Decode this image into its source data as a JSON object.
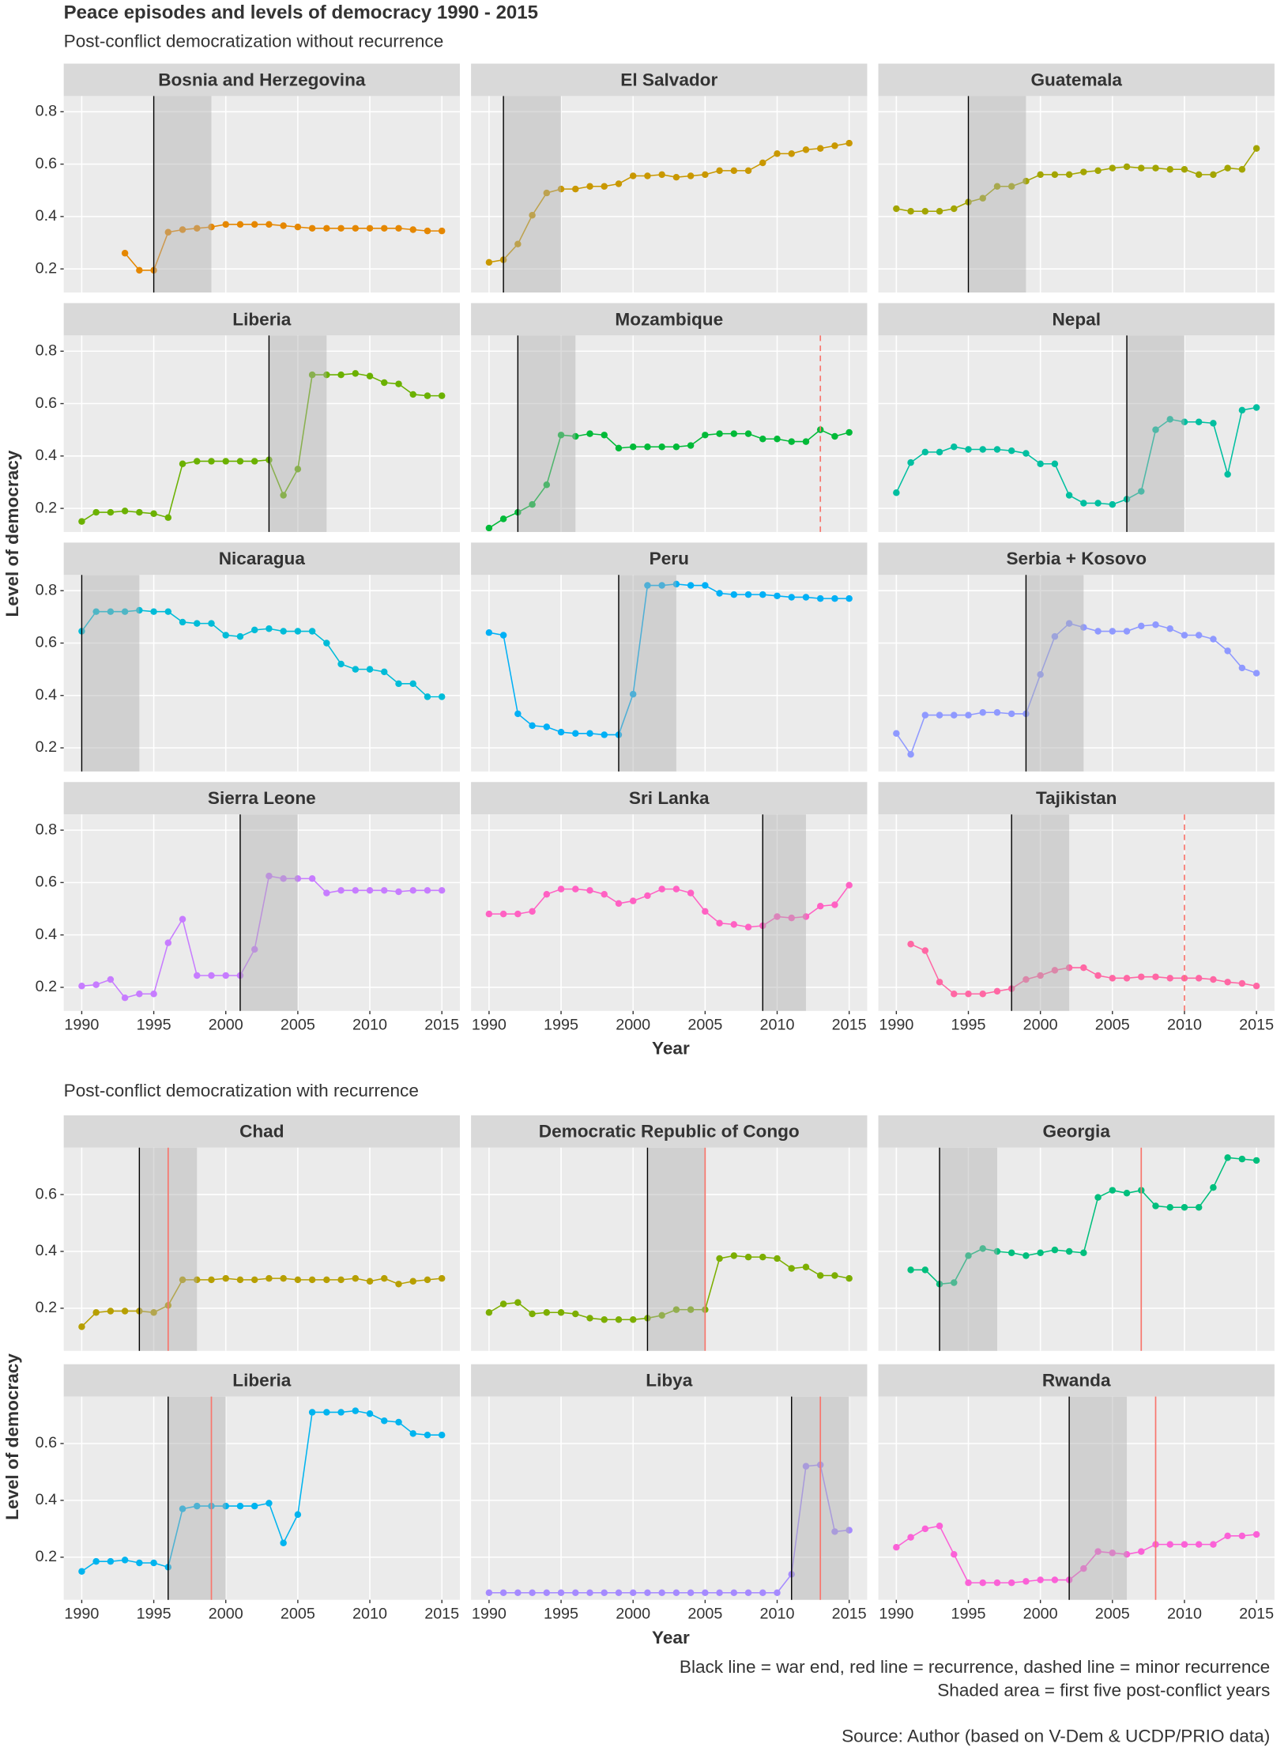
{
  "chart_data": {
    "title": "Peace episodes and levels of democracy 1990 - 2015",
    "sections": [
      {
        "subtitle": "Post-conflict democratization without recurrence",
        "y_label": "Level of democracy",
        "x_label": "Year",
        "x": [
          1990,
          1991,
          1992,
          1993,
          1994,
          1995,
          1996,
          1997,
          1998,
          1999,
          2000,
          2001,
          2002,
          2003,
          2004,
          2005,
          2006,
          2007,
          2008,
          2009,
          2010,
          2011,
          2012,
          2013,
          2014,
          2015
        ],
        "xlim": [
          1988.75,
          2016.25
        ],
        "xticks": [
          1990,
          1995,
          2000,
          2005,
          2010,
          2015
        ],
        "ylim": [
          0.11,
          0.86
        ],
        "yticks": [
          0.2,
          0.4,
          0.6,
          0.8
        ],
        "grid": true,
        "panels": [
          {
            "type": "line",
            "title": "Bosnia and Herzegovina",
            "color": "#E58700",
            "war_end": 1995,
            "shade": [
              1995,
              1999
            ],
            "values": [
              null,
              null,
              null,
              0.26,
              0.195,
              0.195,
              0.34,
              0.35,
              0.355,
              0.36,
              0.37,
              0.37,
              0.37,
              0.37,
              0.365,
              0.36,
              0.355,
              0.355,
              0.355,
              0.355,
              0.355,
              0.355,
              0.355,
              0.35,
              0.345,
              0.345
            ]
          },
          {
            "type": "line",
            "title": "El Salvador",
            "color": "#C99800",
            "war_end": 1991,
            "shade": [
              1991,
              1995
            ],
            "values": [
              0.225,
              0.235,
              0.295,
              0.405,
              0.49,
              0.505,
              0.505,
              0.515,
              0.515,
              0.525,
              0.555,
              0.555,
              0.56,
              0.55,
              0.555,
              0.56,
              0.575,
              0.575,
              0.575,
              0.605,
              0.64,
              0.64,
              0.655,
              0.66,
              0.67,
              0.68
            ]
          },
          {
            "type": "line",
            "title": "Guatemala",
            "color": "#A3A500",
            "war_end": 1995,
            "shade": [
              1995,
              1999
            ],
            "values": [
              0.43,
              0.42,
              0.42,
              0.42,
              0.43,
              0.455,
              0.47,
              0.515,
              0.515,
              0.535,
              0.56,
              0.56,
              0.56,
              0.57,
              0.575,
              0.585,
              0.59,
              0.585,
              0.585,
              0.58,
              0.58,
              0.56,
              0.56,
              0.585,
              0.58,
              0.66
            ]
          },
          {
            "type": "line",
            "title": "Liberia",
            "color": "#6BB100",
            "war_end": 2003,
            "shade": [
              2003,
              2007
            ],
            "values": [
              0.15,
              0.185,
              0.185,
              0.19,
              0.185,
              0.18,
              0.165,
              0.37,
              0.38,
              0.38,
              0.38,
              0.38,
              0.38,
              0.385,
              0.25,
              0.35,
              0.71,
              0.71,
              0.71,
              0.715,
              0.705,
              0.68,
              0.675,
              0.635,
              0.63,
              0.63
            ]
          },
          {
            "type": "line",
            "title": "Mozambique",
            "color": "#00BA38",
            "war_end": 1992,
            "shade": [
              1992,
              1996
            ],
            "minor_recurrence": 2013,
            "values": [
              0.125,
              0.16,
              0.185,
              0.215,
              0.29,
              0.48,
              0.475,
              0.485,
              0.48,
              0.43,
              0.435,
              0.435,
              0.435,
              0.435,
              0.44,
              0.48,
              0.485,
              0.485,
              0.485,
              0.465,
              0.465,
              0.455,
              0.455,
              0.5,
              0.475,
              0.49
            ]
          },
          {
            "type": "line",
            "title": "Nepal",
            "color": "#00BFA0",
            "war_end": 2006,
            "shade": [
              2006,
              2010
            ],
            "values": [
              0.26,
              0.375,
              0.415,
              0.415,
              0.435,
              0.425,
              0.425,
              0.425,
              0.42,
              0.41,
              0.37,
              0.37,
              0.25,
              0.22,
              0.22,
              0.215,
              0.235,
              0.265,
              0.5,
              0.54,
              0.53,
              0.53,
              0.525,
              0.33,
              0.575,
              0.585
            ]
          },
          {
            "type": "line",
            "title": "Nicaragua",
            "color": "#00BCD8",
            "war_end": 1990,
            "shade": [
              1990,
              1994
            ],
            "values": [
              0.645,
              0.72,
              0.72,
              0.72,
              0.725,
              0.72,
              0.72,
              0.68,
              0.675,
              0.675,
              0.63,
              0.625,
              0.65,
              0.655,
              0.645,
              0.645,
              0.645,
              0.6,
              0.52,
              0.5,
              0.5,
              0.49,
              0.445,
              0.445,
              0.395,
              0.395
            ]
          },
          {
            "type": "line",
            "title": "Peru",
            "color": "#00B0F6",
            "war_end": 1999,
            "shade": [
              1999,
              2003
            ],
            "values": [
              0.64,
              0.63,
              0.33,
              0.285,
              0.28,
              0.26,
              0.255,
              0.255,
              0.25,
              0.25,
              0.405,
              0.82,
              0.82,
              0.825,
              0.82,
              0.82,
              0.79,
              0.785,
              0.785,
              0.785,
              0.78,
              0.775,
              0.775,
              0.77,
              0.77,
              0.77
            ]
          },
          {
            "type": "line",
            "title": "Serbia + Kosovo",
            "color": "#8F99FF",
            "war_end": 1999,
            "shade": [
              1999,
              2003
            ],
            "values": [
              0.255,
              0.175,
              0.325,
              0.325,
              0.325,
              0.325,
              0.335,
              0.335,
              0.33,
              0.33,
              0.48,
              0.625,
              0.675,
              0.66,
              0.645,
              0.645,
              0.645,
              0.665,
              0.67,
              0.655,
              0.63,
              0.63,
              0.615,
              0.57,
              0.505,
              0.485
            ]
          },
          {
            "type": "line",
            "title": "Sierra Leone",
            "color": "#C77CFF",
            "war_end": 2001,
            "shade": [
              2001,
              2005
            ],
            "values": [
              0.205,
              0.21,
              0.23,
              0.16,
              0.175,
              0.175,
              0.37,
              0.46,
              0.245,
              0.245,
              0.245,
              0.245,
              0.345,
              0.625,
              0.615,
              0.615,
              0.615,
              0.56,
              0.57,
              0.57,
              0.57,
              0.57,
              0.565,
              0.57,
              0.57,
              0.57
            ]
          },
          {
            "type": "line",
            "title": "Sri Lanka",
            "color": "#FF61C3",
            "war_end": 2009,
            "shade": [
              2009,
              2012
            ],
            "values": [
              0.48,
              0.48,
              0.48,
              0.49,
              0.555,
              0.575,
              0.575,
              0.57,
              0.555,
              0.52,
              0.53,
              0.55,
              0.575,
              0.575,
              0.56,
              0.49,
              0.445,
              0.44,
              0.43,
              0.435,
              0.47,
              0.465,
              0.47,
              0.51,
              0.515,
              0.59
            ]
          },
          {
            "type": "line",
            "title": "Tajikistan",
            "color": "#FF67A4",
            "war_end": 1998,
            "shade": [
              1998,
              2002
            ],
            "minor_recurrence": 2010,
            "values": [
              null,
              0.365,
              0.34,
              0.22,
              0.175,
              0.175,
              0.175,
              0.185,
              0.195,
              0.23,
              0.245,
              0.265,
              0.275,
              0.275,
              0.245,
              0.235,
              0.235,
              0.24,
              0.24,
              0.235,
              0.235,
              0.235,
              0.23,
              0.22,
              0.215,
              0.205
            ]
          }
        ]
      },
      {
        "subtitle": "Post-conflict democratization with recurrence",
        "y_label": "Level of democracy",
        "x_label": "Year",
        "x": [
          1990,
          1991,
          1992,
          1993,
          1994,
          1995,
          1996,
          1997,
          1998,
          1999,
          2000,
          2001,
          2002,
          2003,
          2004,
          2005,
          2006,
          2007,
          2008,
          2009,
          2010,
          2011,
          2012,
          2013,
          2014,
          2015
        ],
        "xlim": [
          1988.75,
          2016.25
        ],
        "xticks": [
          1990,
          1995,
          2000,
          2005,
          2010,
          2015
        ],
        "ylim": [
          0.05,
          0.765
        ],
        "yticks": [
          0.2,
          0.4,
          0.6
        ],
        "grid": true,
        "panels": [
          {
            "type": "line",
            "title": "Chad",
            "color": "#B79F00",
            "war_end": 1994,
            "shade": [
              1994,
              1998
            ],
            "recurrence": 1996,
            "values": [
              0.135,
              0.185,
              0.19,
              0.19,
              0.19,
              0.185,
              0.21,
              0.3,
              0.3,
              0.3,
              0.305,
              0.3,
              0.3,
              0.305,
              0.305,
              0.3,
              0.3,
              0.3,
              0.3,
              0.305,
              0.295,
              0.305,
              0.285,
              0.295,
              0.3,
              0.305
            ]
          },
          {
            "type": "line",
            "title": "Democratic Republic of Congo",
            "color": "#7CAE00",
            "war_end": 2001,
            "shade": [
              2001,
              2005
            ],
            "recurrence": 2005,
            "values": [
              0.185,
              0.215,
              0.22,
              0.18,
              0.185,
              0.185,
              0.18,
              0.165,
              0.16,
              0.16,
              0.16,
              0.165,
              0.175,
              0.195,
              0.195,
              0.195,
              0.375,
              0.385,
              0.38,
              0.38,
              0.375,
              0.34,
              0.345,
              0.315,
              0.315,
              0.305
            ]
          },
          {
            "type": "line",
            "title": "Georgia",
            "color": "#00BF7D",
            "war_end": 1993,
            "shade": [
              1993,
              1997
            ],
            "recurrence": 2007,
            "values": [
              null,
              0.335,
              0.335,
              0.285,
              0.29,
              0.385,
              0.41,
              0.4,
              0.395,
              0.385,
              0.395,
              0.405,
              0.4,
              0.395,
              0.59,
              0.615,
              0.605,
              0.615,
              0.56,
              0.555,
              0.555,
              0.555,
              0.625,
              0.73,
              0.725,
              0.72
            ]
          },
          {
            "type": "line",
            "title": "Liberia",
            "color": "#00B4EF",
            "war_end": 1996,
            "shade": [
              1996,
              2000
            ],
            "recurrence": 1999,
            "values": [
              0.15,
              0.185,
              0.185,
              0.19,
              0.18,
              0.18,
              0.165,
              0.37,
              0.38,
              0.38,
              0.38,
              0.38,
              0.38,
              0.39,
              0.25,
              0.35,
              0.71,
              0.71,
              0.71,
              0.715,
              0.705,
              0.68,
              0.675,
              0.635,
              0.63,
              0.63
            ]
          },
          {
            "type": "line",
            "title": "Libya",
            "color": "#A58AFF",
            "war_end": 2011,
            "shade": [
              2011,
              2015
            ],
            "recurrence": 2013,
            "values": [
              0.075,
              0.075,
              0.075,
              0.075,
              0.075,
              0.075,
              0.075,
              0.075,
              0.075,
              0.075,
              0.075,
              0.075,
              0.075,
              0.075,
              0.075,
              0.075,
              0.075,
              0.075,
              0.075,
              0.075,
              0.075,
              0.14,
              0.52,
              0.525,
              0.29,
              0.295
            ]
          },
          {
            "type": "line",
            "title": "Rwanda",
            "color": "#FB61D7",
            "war_end": 2002,
            "shade": [
              2002,
              2006
            ],
            "recurrence": 2008,
            "values": [
              0.235,
              0.27,
              0.3,
              0.31,
              0.21,
              0.11,
              0.11,
              0.11,
              0.11,
              0.115,
              0.12,
              0.12,
              0.12,
              0.16,
              0.22,
              0.215,
              0.21,
              0.22,
              0.245,
              0.245,
              0.245,
              0.245,
              0.245,
              0.275,
              0.275,
              0.28
            ]
          }
        ]
      }
    ],
    "caption": [
      "Black line = war end, red line = recurrence, dashed line = minor recurrence",
      "Shaded area = first five post-conflict years"
    ],
    "source": "Source: Author (based on V-Dem & UCDP/PRIO data)"
  }
}
